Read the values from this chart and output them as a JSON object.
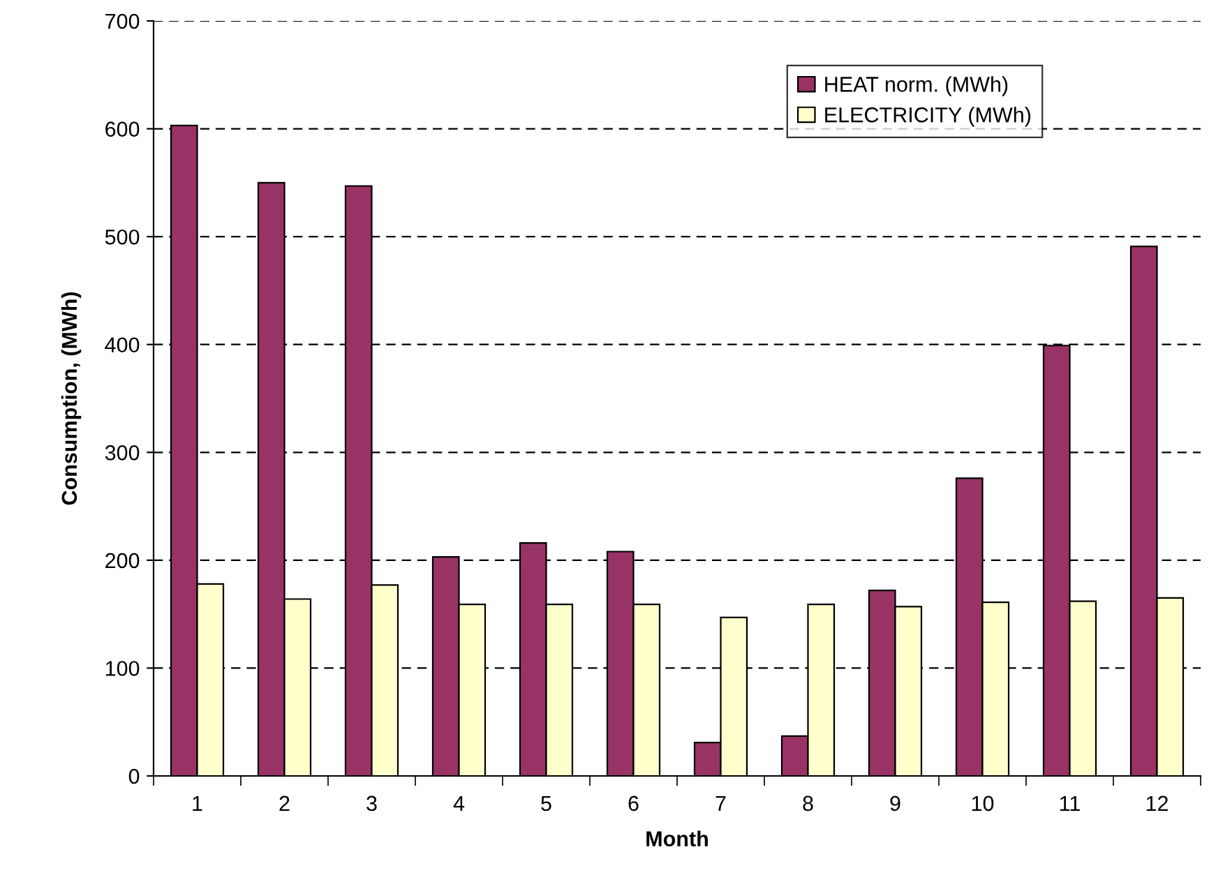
{
  "chart_data": {
    "type": "bar",
    "xlabel": "Month",
    "ylabel": "Consumption, (MWh)",
    "categories": [
      "1",
      "2",
      "3",
      "4",
      "5",
      "6",
      "7",
      "8",
      "9",
      "10",
      "11",
      "12"
    ],
    "series": [
      {
        "name": "HEAT norm. (MWh)",
        "color": "#993366",
        "values": [
          603,
          550,
          547,
          203,
          216,
          208,
          31,
          37,
          172,
          276,
          399,
          491
        ]
      },
      {
        "name": "ELECTRICITY (MWh)",
        "color": "#ffffcc",
        "values": [
          178,
          164,
          177,
          159,
          159,
          159,
          147,
          159,
          157,
          161,
          162,
          165
        ]
      }
    ],
    "ylim": [
      0,
      700
    ],
    "yticks": [
      0,
      100,
      200,
      300,
      400,
      500,
      600,
      700
    ],
    "grid": "y",
    "legend": "top right"
  }
}
